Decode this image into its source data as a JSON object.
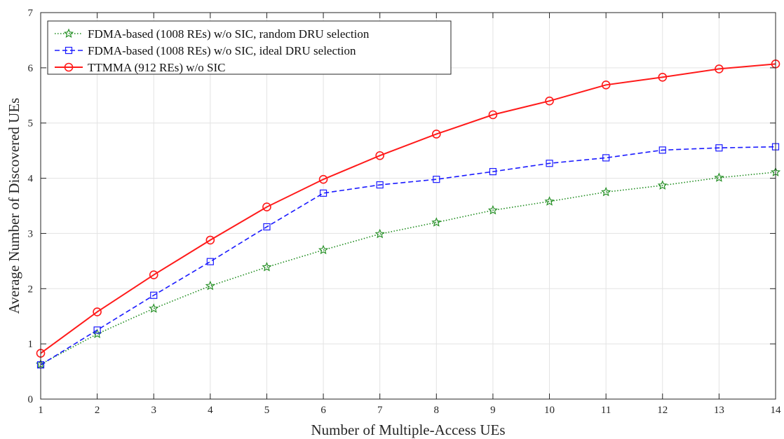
{
  "chart_data": {
    "type": "line",
    "title": "",
    "xlabel": "Number of Multiple-Access UEs",
    "ylabel": "Average Number of Discovered UEs",
    "xlim": [
      1,
      14
    ],
    "ylim": [
      0,
      7
    ],
    "x_ticks": [
      1,
      2,
      3,
      4,
      5,
      6,
      7,
      8,
      9,
      10,
      11,
      12,
      13,
      14
    ],
    "y_ticks": [
      0,
      1,
      2,
      3,
      4,
      5,
      6,
      7
    ],
    "grid": true,
    "legend_position": "top-left",
    "x": [
      1,
      2,
      3,
      4,
      5,
      6,
      7,
      8,
      9,
      10,
      11,
      12,
      13,
      14
    ],
    "series": [
      {
        "name": "FDMA-based (1008 REs) w/o SIC, random DRU selection",
        "color": "#1e8c1e",
        "line_style": "dotted",
        "marker": "star",
        "values": [
          0.63,
          1.18,
          1.64,
          2.05,
          2.39,
          2.7,
          2.99,
          3.2,
          3.42,
          3.58,
          3.75,
          3.87,
          4.01,
          4.11
        ]
      },
      {
        "name": "FDMA-based (1008 REs) w/o SIC, ideal DRU selection",
        "color": "#1a1aff",
        "line_style": "dashed",
        "marker": "square",
        "values": [
          0.62,
          1.25,
          1.88,
          2.49,
          3.12,
          3.73,
          3.88,
          3.98,
          4.12,
          4.27,
          4.37,
          4.51,
          4.55,
          4.57
        ]
      },
      {
        "name": "TTMMA (912 REs) w/o SIC",
        "color": "#ff1a1a",
        "line_style": "solid",
        "marker": "circle",
        "values": [
          0.83,
          1.58,
          2.25,
          2.88,
          3.48,
          3.98,
          4.41,
          4.8,
          5.15,
          5.4,
          5.69,
          5.83,
          5.98,
          6.07
        ]
      }
    ]
  }
}
